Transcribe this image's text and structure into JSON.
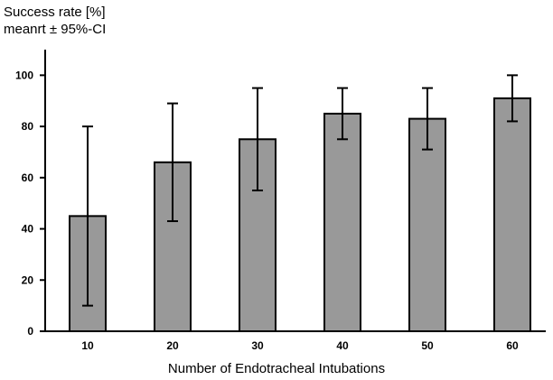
{
  "chart_data": {
    "type": "bar",
    "ylabel_line1": "Success rate [%]",
    "ylabel_line2": "meanrt ± 95%-CI",
    "xlabel": "Number of Endotracheal Intubations",
    "categories": [
      "10",
      "20",
      "30",
      "40",
      "50",
      "60"
    ],
    "values": [
      45,
      66,
      75,
      85,
      83,
      91
    ],
    "ci_lower": [
      10,
      43,
      55,
      75,
      71,
      82
    ],
    "ci_upper": [
      80,
      89,
      95,
      95,
      95,
      100
    ],
    "ylim": [
      0,
      110
    ],
    "yticks": [
      0,
      20,
      40,
      60,
      80,
      100
    ],
    "bar_color": "#999999",
    "grid": false
  }
}
